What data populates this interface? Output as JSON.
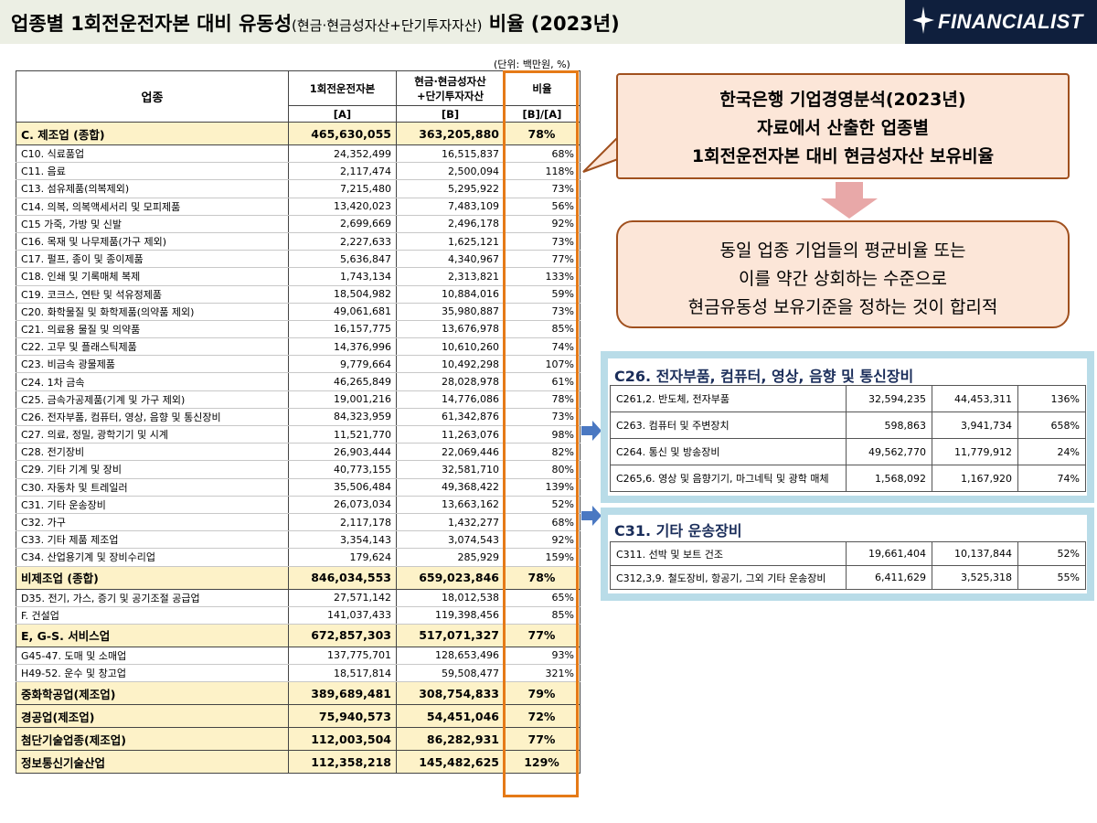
{
  "header": {
    "title_main": "업종별 1회전운전자본 대비 유동성",
    "title_sub": "(현금·현금성자산+단기투자자산)",
    "title_end": " 비율 (2023년)",
    "logo_text": "FINANCIALIST",
    "logo_icon": "sparkle-star-icon"
  },
  "unit": "(단위: 백만원, %)",
  "table": {
    "headers": {
      "industry": "업종",
      "col_a": "1회전운전자본",
      "col_b_line1": "현금·현금성자산",
      "col_b_line2": "+단기투자자산",
      "col_ratio": "비율",
      "sub_a": "[A]",
      "sub_b": "[B]",
      "sub_ratio": "[B]/[A]"
    },
    "rows": [
      {
        "name": "C. 제조업 (종합)",
        "a": "465,630,055",
        "b": "363,205,880",
        "ratio": "78%",
        "agg": true
      },
      {
        "name": "C10. 식료품업",
        "a": "24,352,499",
        "b": "16,515,837",
        "ratio": "68%",
        "agg": false
      },
      {
        "name": "C11. 음료",
        "a": "2,117,474",
        "b": "2,500,094",
        "ratio": "118%",
        "agg": false
      },
      {
        "name": "C13. 섬유제품(의복제외)",
        "a": "7,215,480",
        "b": "5,295,922",
        "ratio": "73%",
        "agg": false
      },
      {
        "name": "C14. 의복, 의복액세서리 및 모피제품",
        "a": "13,420,023",
        "b": "7,483,109",
        "ratio": "56%",
        "agg": false
      },
      {
        "name": "C15 가죽, 가방 및 신발",
        "a": "2,699,669",
        "b": "2,496,178",
        "ratio": "92%",
        "agg": false
      },
      {
        "name": "C16. 목재 및 나무제품(가구 제외)",
        "a": "2,227,633",
        "b": "1,625,121",
        "ratio": "73%",
        "agg": false
      },
      {
        "name": "C17. 펄프, 종이 및 종이제품",
        "a": "5,636,847",
        "b": "4,340,967",
        "ratio": "77%",
        "agg": false
      },
      {
        "name": "C18. 인쇄 및 기록매체 복제",
        "a": "1,743,134",
        "b": "2,313,821",
        "ratio": "133%",
        "agg": false
      },
      {
        "name": "C19. 코크스, 연탄 및 석유정제품",
        "a": "18,504,982",
        "b": "10,884,016",
        "ratio": "59%",
        "agg": false
      },
      {
        "name": "C20. 화학물질 및 화학제품(의약품 제외)",
        "a": "49,061,681",
        "b": "35,980,887",
        "ratio": "73%",
        "agg": false
      },
      {
        "name": "C21. 의료용 물질 및 의약품",
        "a": "16,157,775",
        "b": "13,676,978",
        "ratio": "85%",
        "agg": false
      },
      {
        "name": "C22. 고무 및 플래스틱제품",
        "a": "14,376,996",
        "b": "10,610,260",
        "ratio": "74%",
        "agg": false
      },
      {
        "name": "C23. 비금속 광물제품",
        "a": "9,779,664",
        "b": "10,492,298",
        "ratio": "107%",
        "agg": false
      },
      {
        "name": "C24. 1차 금속",
        "a": "46,265,849",
        "b": "28,028,978",
        "ratio": "61%",
        "agg": false
      },
      {
        "name": "C25. 금속가공제품(기계 및 가구 제외)",
        "a": "19,001,216",
        "b": "14,776,086",
        "ratio": "78%",
        "agg": false
      },
      {
        "name": "C26. 전자부품, 컴퓨터, 영상, 음향 및 통신장비",
        "a": "84,323,959",
        "b": "61,342,876",
        "ratio": "73%",
        "agg": false
      },
      {
        "name": "C27. 의료, 정밀, 광학기기 및 시계",
        "a": "11,521,770",
        "b": "11,263,076",
        "ratio": "98%",
        "agg": false
      },
      {
        "name": "C28. 전기장비",
        "a": "26,903,444",
        "b": "22,069,446",
        "ratio": "82%",
        "agg": false
      },
      {
        "name": "C29. 기타 기계 및 장비",
        "a": "40,773,155",
        "b": "32,581,710",
        "ratio": "80%",
        "agg": false
      },
      {
        "name": "C30. 자동차 및 트레일러",
        "a": "35,506,484",
        "b": "49,368,422",
        "ratio": "139%",
        "agg": false
      },
      {
        "name": "C31. 기타 운송장비",
        "a": "26,073,034",
        "b": "13,663,162",
        "ratio": "52%",
        "agg": false
      },
      {
        "name": "C32. 가구",
        "a": "2,117,178",
        "b": "1,432,277",
        "ratio": "68%",
        "agg": false
      },
      {
        "name": "C33. 기타 제품 제조업",
        "a": "3,354,143",
        "b": "3,074,543",
        "ratio": "92%",
        "agg": false
      },
      {
        "name": "C34. 산업용기계 및 장비수리업",
        "a": "179,624",
        "b": "285,929",
        "ratio": "159%",
        "agg": false
      },
      {
        "name": "비제조업 (종합)",
        "a": "846,034,553",
        "b": "659,023,846",
        "ratio": "78%",
        "agg": true
      },
      {
        "name": "D35. 전기, 가스, 증기 및 공기조절 공급업",
        "a": "27,571,142",
        "b": "18,012,538",
        "ratio": "65%",
        "agg": false
      },
      {
        "name": "F. 건설업",
        "a": "141,037,433",
        "b": "119,398,456",
        "ratio": "85%",
        "agg": false
      },
      {
        "name": "E, G-S. 서비스업",
        "a": "672,857,303",
        "b": "517,071,327",
        "ratio": "77%",
        "agg": true
      },
      {
        "name": "G45-47. 도매 및 소매업",
        "a": "137,775,701",
        "b": "128,653,496",
        "ratio": "93%",
        "agg": false
      },
      {
        "name": "H49-52. 운수 및 창고업",
        "a": "18,517,814",
        "b": "59,508,477",
        "ratio": "321%",
        "agg": false
      },
      {
        "name": "중화학공업(제조업)",
        "a": "389,689,481",
        "b": "308,754,833",
        "ratio": "79%",
        "agg": true
      },
      {
        "name": "경공업(제조업)",
        "a": "75,940,573",
        "b": "54,451,046",
        "ratio": "72%",
        "agg": true
      },
      {
        "name": "첨단기술업종(제조업)",
        "a": "112,003,504",
        "b": "86,282,931",
        "ratio": "77%",
        "agg": true
      },
      {
        "name": "정보통신기술산업",
        "a": "112,358,218",
        "b": "145,482,625",
        "ratio": "129%",
        "agg": true
      }
    ]
  },
  "callout1": {
    "line1": "한국은행 기업경영분석(2023년)",
    "line2": "자료에서 산출한 업종별",
    "line3": "1회전운전자본 대비 현금성자산 보유비율"
  },
  "callout2": {
    "line1": "동일 업종 기업들의 평균비율 또는",
    "line2": "이를 약간 상회하는 수준으로",
    "line3": "현금유동성 보유기준을 정하는 것이 합리적"
  },
  "panel_c26": {
    "title": "C26. 전자부품, 컴퓨터, 영상, 음향 및 통신장비",
    "rows": [
      {
        "name": "C261,2. 반도체, 전자부품",
        "a": "32,594,235",
        "b": "44,453,311",
        "ratio": "136%"
      },
      {
        "name": "C263. 컴퓨터 및 주변장치",
        "a": "598,863",
        "b": "3,941,734",
        "ratio": "658%"
      },
      {
        "name": "C264. 통신 및 방송장비",
        "a": "49,562,770",
        "b": "11,779,912",
        "ratio": "24%"
      },
      {
        "name": "C265,6. 영상 및 음향기기, 마그네틱 및 광학 매체",
        "a": "1,568,092",
        "b": "1,167,920",
        "ratio": "74%"
      }
    ]
  },
  "panel_c31": {
    "title": "C31. 기타 운송장비",
    "rows": [
      {
        "name": "C311. 선박 및 보트 건조",
        "a": "19,661,404",
        "b": "10,137,844",
        "ratio": "52%"
      },
      {
        "name": "C312,3,9. 철도장비, 항공기, 그외 기타 운송장비",
        "a": "6,411,629",
        "b": "3,525,318",
        "ratio": "55%"
      }
    ]
  },
  "colors": {
    "header_bg": "#ecefe4",
    "logo_bg": "#0f1f3d",
    "aggregate_row_bg": "#fdf2c8",
    "ratio_frame": "#e57a17",
    "callout_fill": "#fce6d8",
    "callout_border": "#a0501e",
    "panel_frame": "#b9dce8",
    "panel_title": "#1a2d5a",
    "arrow_blue": "#4a78c2",
    "arrow_pink": "#e8a8a8"
  }
}
